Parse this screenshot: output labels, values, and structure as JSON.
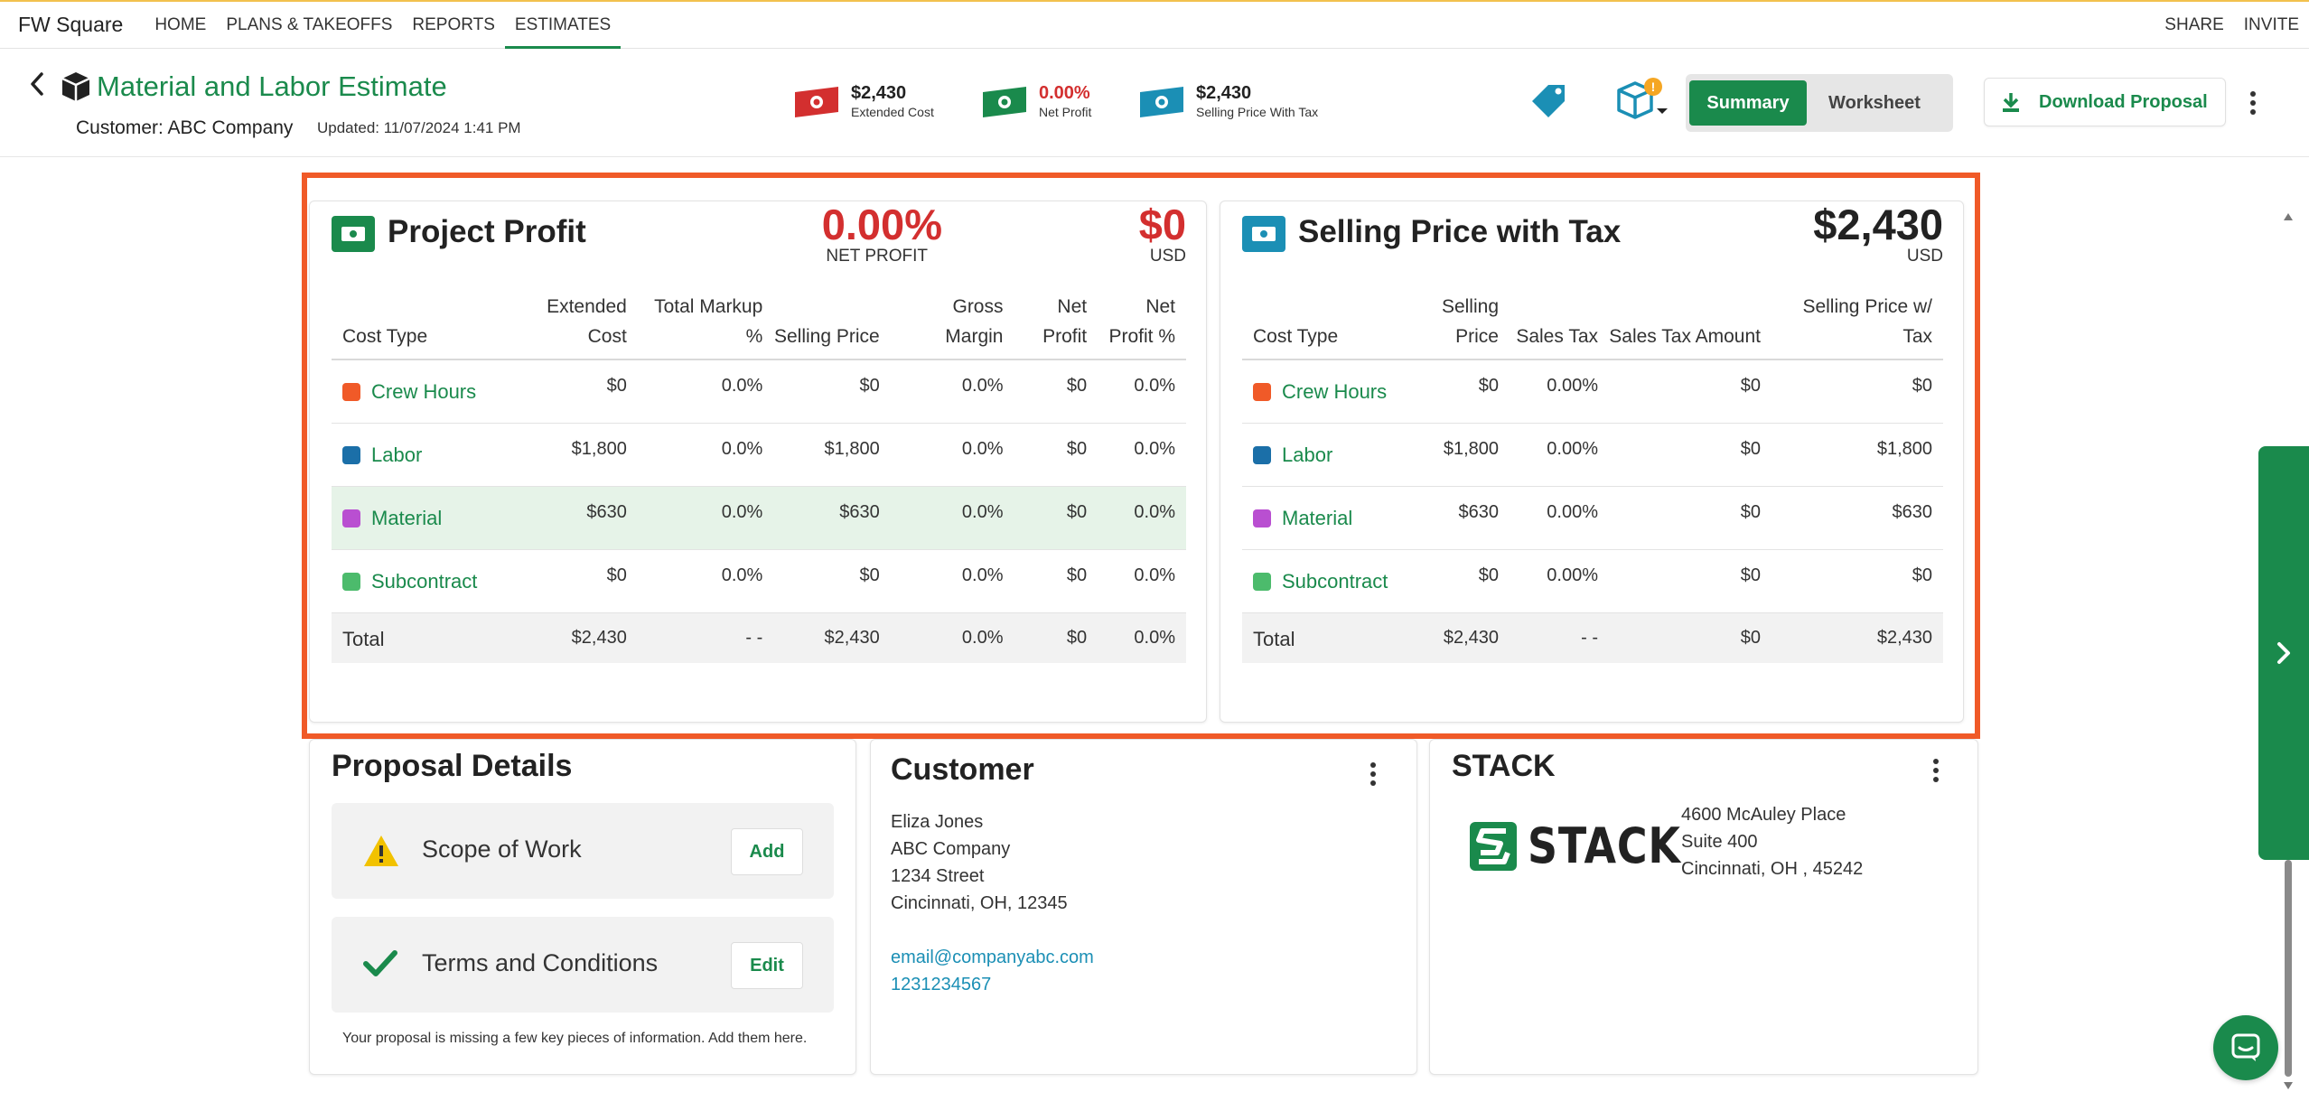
{
  "nav": {
    "brand": "FW Square",
    "items": [
      "HOME",
      "PLANS & TAKEOFFS",
      "REPORTS",
      "ESTIMATES"
    ],
    "active": "ESTIMATES",
    "right": [
      "SHARE",
      "INVITE"
    ]
  },
  "header": {
    "title": "Material and Labor Estimate",
    "customer": "Customer: ABC Company",
    "updated": "Updated: 11/07/2024 1:41 PM",
    "metrics": [
      {
        "value": "$2,430",
        "label": "Extended Cost",
        "color": "#d32f2f"
      },
      {
        "value": "0.00%",
        "label": "Net Profit",
        "color": "#1a8a4c"
      },
      {
        "value": "$2,430",
        "label": "Selling Price With Tax",
        "color": "#1b8fb5"
      }
    ],
    "view_summary": "Summary",
    "view_worksheet": "Worksheet",
    "download_label": "Download Proposal",
    "cube_badge": "!"
  },
  "project_profit": {
    "title": "Project Profit",
    "net_profit_value": "0.00%",
    "net_profit_label": "NET PROFIT",
    "amount": "$0",
    "currency": "USD",
    "columns": [
      "Cost Type",
      "Extended Cost",
      "Total Markup %",
      "Selling Price",
      "Gross Margin",
      "Net Profit",
      "Net Profit %"
    ],
    "rows": [
      {
        "type": "Crew Hours",
        "color": "#f05a28",
        "cells": [
          "$0",
          "0.0%",
          "$0",
          "0.0%",
          "$0",
          "0.0%"
        ]
      },
      {
        "type": "Labor",
        "color": "#1b6fa8",
        "cells": [
          "$1,800",
          "0.0%",
          "$1,800",
          "0.0%",
          "$0",
          "0.0%"
        ]
      },
      {
        "type": "Material",
        "color": "#b94fd1",
        "cells": [
          "$630",
          "0.0%",
          "$630",
          "0.0%",
          "$0",
          "0.0%"
        ]
      },
      {
        "type": "Subcontract",
        "color": "#4cbb6c",
        "cells": [
          "$0",
          "0.0%",
          "$0",
          "0.0%",
          "$0",
          "0.0%"
        ]
      }
    ],
    "total": {
      "label": "Total",
      "cells": [
        "$2,430",
        "- -",
        "$2,430",
        "0.0%",
        "$0",
        "0.0%"
      ]
    }
  },
  "selling_price": {
    "title": "Selling Price with Tax",
    "amount": "$2,430",
    "currency": "USD",
    "columns": [
      "Cost Type",
      "Selling Price",
      "Sales Tax",
      "Sales Tax Amount",
      "Selling Price w/ Tax"
    ],
    "rows": [
      {
        "type": "Crew Hours",
        "color": "#f05a28",
        "cells": [
          "$0",
          "0.00%",
          "$0",
          "$0"
        ]
      },
      {
        "type": "Labor",
        "color": "#1b6fa8",
        "cells": [
          "$1,800",
          "0.00%",
          "$0",
          "$1,800"
        ]
      },
      {
        "type": "Material",
        "color": "#b94fd1",
        "cells": [
          "$630",
          "0.00%",
          "$0",
          "$630"
        ]
      },
      {
        "type": "Subcontract",
        "color": "#4cbb6c",
        "cells": [
          "$0",
          "0.00%",
          "$0",
          "$0"
        ]
      }
    ],
    "total": {
      "label": "Total",
      "cells": [
        "$2,430",
        "- -",
        "$0",
        "$2,430"
      ]
    }
  },
  "proposal_details": {
    "title": "Proposal Details",
    "items": [
      {
        "label": "Scope of Work",
        "action": "Add"
      },
      {
        "label": "Terms and Conditions",
        "action": "Edit"
      }
    ],
    "note": "Your proposal is missing a few key pieces of information. Add them here."
  },
  "customer": {
    "title": "Customer",
    "name": "Eliza Jones",
    "company": "ABC Company",
    "street": "1234 Street",
    "city": "Cincinnati, OH, 12345",
    "email": "email@companyabc.com",
    "phone": "1231234567"
  },
  "stack": {
    "title": "STACK",
    "logo_text": "STACK",
    "address1": "4600 McAuley Place",
    "address2": "Suite 400",
    "address3": "Cincinnati, OH , 45242"
  }
}
